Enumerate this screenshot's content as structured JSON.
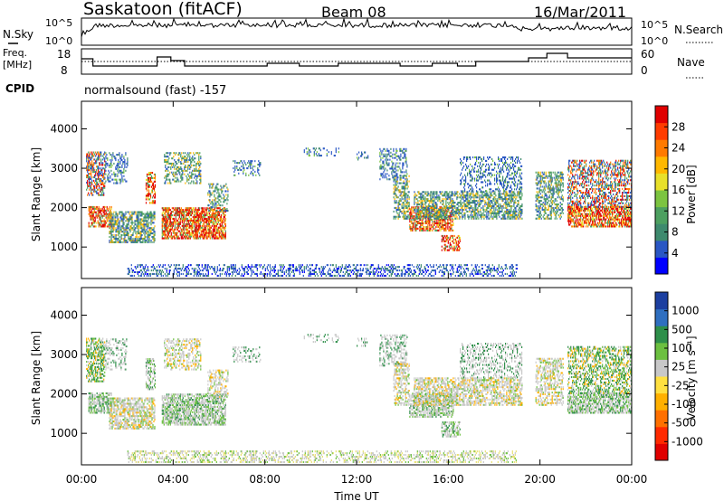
{
  "header": {
    "title": "Saskatoon (fitACF)",
    "beam": "Beam 08",
    "date": "16/Mar/2011"
  },
  "nsky_panel": {
    "left_label": "N.Sky",
    "right_label": "N.Search",
    "left_ticks": [
      "10^5",
      "10^0"
    ],
    "right_ticks": [
      "10^5",
      "10^0"
    ]
  },
  "freq_panel": {
    "left_label_1": "Freq.",
    "left_label_2": "[MHz]",
    "right_label": "Nave",
    "left_ticks": [
      18,
      8
    ],
    "right_ticks": [
      60,
      0
    ]
  },
  "cpid": {
    "label": "CPID",
    "value": "normalsound (fast) -157"
  },
  "chart_data": [
    {
      "type": "heatmap",
      "name": "Power",
      "ylabel": "Slant Range [km]",
      "yticks": [
        1000,
        2000,
        3000,
        4000
      ],
      "ylim": [
        200,
        4700
      ],
      "xlim_hours": [
        0,
        24
      ],
      "colorbar_label": "Power [dB]",
      "colorbar_ticks": [
        4,
        8,
        12,
        16,
        20,
        24,
        28
      ],
      "colorbar_colors": [
        "#0000ff",
        "#2a57c4",
        "#3e8a6e",
        "#4da060",
        "#7cc440",
        "#e8e02a",
        "#ffb800",
        "#ff7a00",
        "#ff3c00",
        "#e00000"
      ]
    },
    {
      "type": "heatmap",
      "name": "Velocity",
      "ylabel": "Slant Range [km]",
      "yticks": [
        1000,
        2000,
        3000,
        4000
      ],
      "ylim": [
        200,
        4700
      ],
      "xlim_hours": [
        0,
        24
      ],
      "xlabel": "Time UT",
      "xticks": [
        "00:00",
        "04:00",
        "08:00",
        "12:00",
        "16:00",
        "20:00",
        "00:00"
      ],
      "colorbar_label": "Velocity [m s⁻¹]",
      "colorbar_ticks": [
        1000,
        500,
        100,
        25,
        -25,
        -100,
        -500,
        -1000
      ],
      "colorbar_colors": [
        "#1c3fa0",
        "#2f6fc0",
        "#2e8f4a",
        "#6cc040",
        "#c8c8c8",
        "#ffe040",
        "#ffb000",
        "#ff7000",
        "#ff2a00",
        "#e00000"
      ]
    }
  ]
}
